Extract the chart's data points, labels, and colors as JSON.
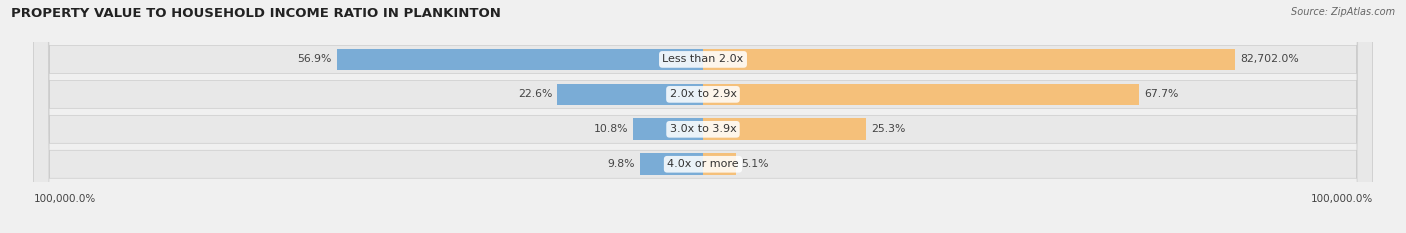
{
  "title": "PROPERTY VALUE TO HOUSEHOLD INCOME RATIO IN PLANKINTON",
  "source": "Source: ZipAtlas.com",
  "categories": [
    "Less than 2.0x",
    "2.0x to 2.9x",
    "3.0x to 3.9x",
    "4.0x or more"
  ],
  "without_mortgage": [
    56.9,
    22.6,
    10.8,
    9.8
  ],
  "with_mortgage_raw": [
    82702.0,
    67.7,
    25.3,
    5.1
  ],
  "with_mortgage_display": [
    "82,702.0%",
    "67.7%",
    "25.3%",
    "5.1%"
  ],
  "without_mortgage_display": [
    "56.9%",
    "22.6%",
    "10.8%",
    "9.8%"
  ],
  "color_without": "#7aacd6",
  "color_with": "#f5c07a",
  "row_bg_color": "#e8e8e8",
  "fig_bg_color": "#f0f0f0",
  "title_fontsize": 9.5,
  "label_fontsize": 7.8,
  "cat_fontsize": 8.0,
  "bottom_label_left": "100,000.0%",
  "bottom_label_right": "100,000.0%",
  "max_val": 100000
}
